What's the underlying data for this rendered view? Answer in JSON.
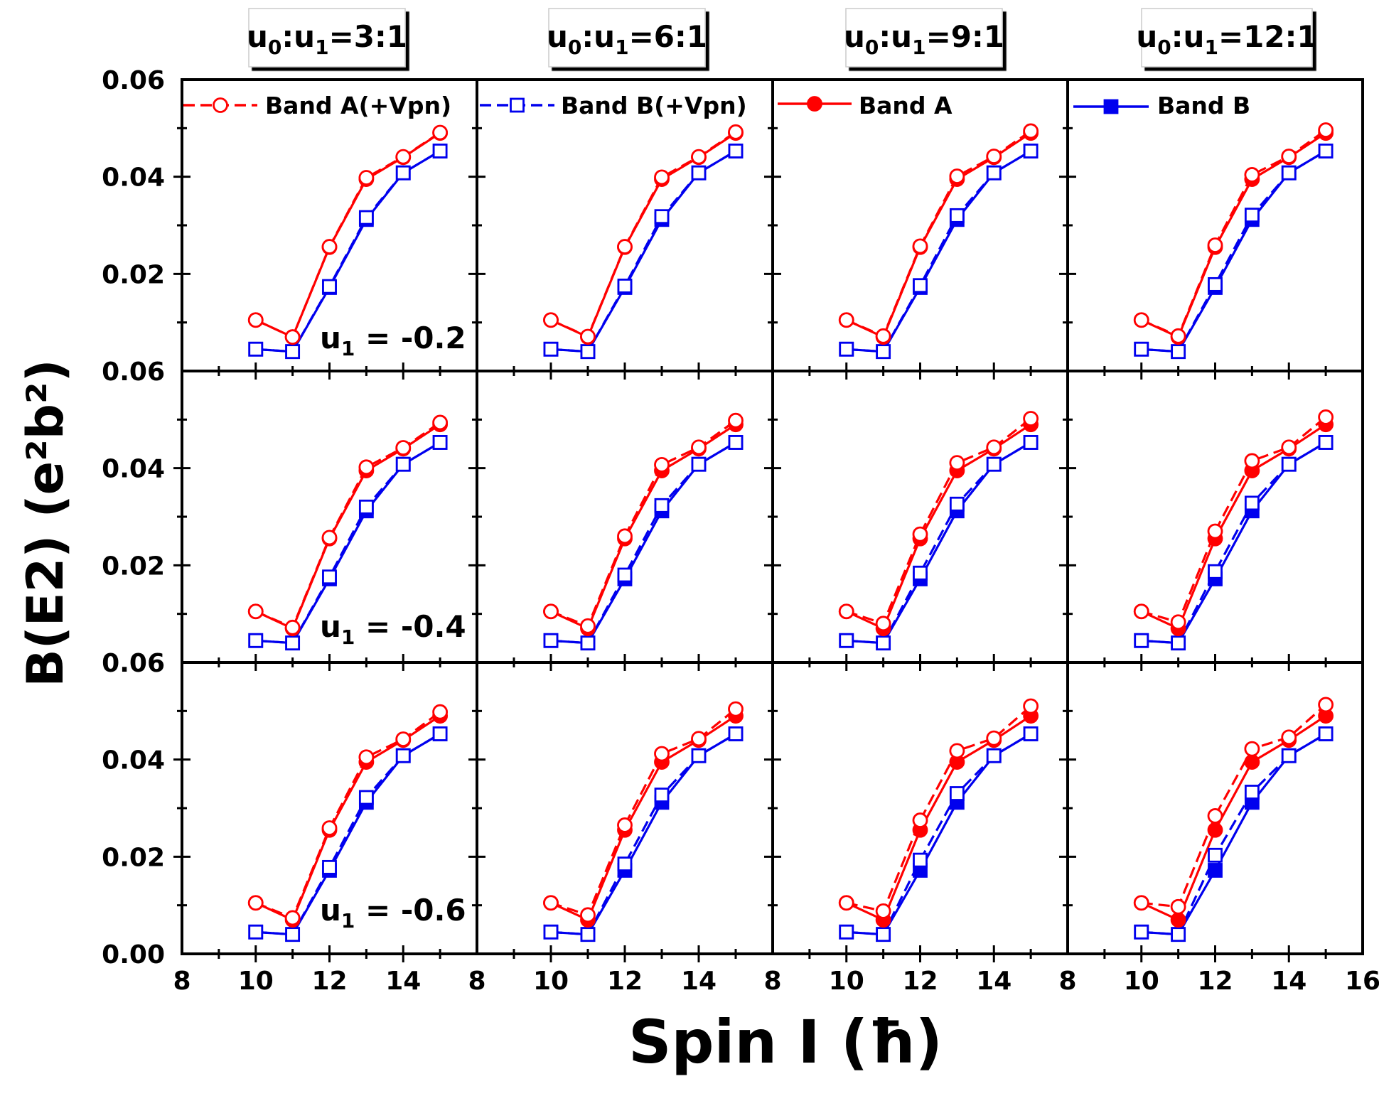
{
  "chart_data": {
    "type": "line",
    "grid": false,
    "ylabel": "B(E2) (e²b²)",
    "xlabel": "Spin I (ħ)",
    "xlim": [
      8,
      16
    ],
    "ylim": [
      0,
      0.06
    ],
    "xticks": [
      "8",
      "10",
      "12",
      "14"
    ],
    "xticks_last": [
      "8",
      "10",
      "12",
      "14",
      "16"
    ],
    "yticks": [
      "0.06",
      "0.04",
      "0.02"
    ],
    "yticks_bottom": [
      "0.06",
      "0.04",
      "0.02",
      "0.00"
    ],
    "column_titles": [
      {
        "u0": "u",
        "sub0": "0",
        "mid": ":u",
        "sub1": "1",
        "ratio": "=3:1"
      },
      {
        "u0": "u",
        "sub0": "0",
        "mid": ":u",
        "sub1": "1",
        "ratio": "=6:1"
      },
      {
        "u0": "u",
        "sub0": "0",
        "mid": ":u",
        "sub1": "1",
        "ratio": "=9:1"
      },
      {
        "u0": "u",
        "sub0": "0",
        "mid": ":u",
        "sub1": "1",
        "ratio": "=12:1"
      }
    ],
    "row_labels": [
      {
        "u": "u",
        "sub": "1",
        "value": " = -0.2"
      },
      {
        "u": "u",
        "sub": "1",
        "value": " = -0.4"
      },
      {
        "u": "u",
        "sub": "1",
        "value": " = -0.6"
      }
    ],
    "legend": [
      {
        "name": "Band A(+Vpn)",
        "color": "#ff0000",
        "dash": true,
        "marker": "circle-open",
        "panel_col": 0
      },
      {
        "name": "Band B(+Vpn)",
        "color": "#0000ee",
        "dash": true,
        "marker": "square-open",
        "panel_col": 1
      },
      {
        "name": "Band A",
        "color": "#ff0000",
        "dash": false,
        "marker": "circle-filled",
        "panel_col": 2
      },
      {
        "name": "Band B",
        "color": "#0000ee",
        "dash": false,
        "marker": "square-filled",
        "panel_col": 3
      }
    ],
    "x": [
      10,
      11,
      12,
      13,
      14,
      15
    ],
    "bandA": [
      0.0105,
      0.007,
      0.0255,
      0.0395,
      0.044,
      0.049
    ],
    "bandB": [
      0.0045,
      0.004,
      0.0172,
      0.0312,
      0.0408,
      0.0453
    ],
    "panels": [
      [
        {
          "A_vpn": [
            0.0105,
            0.007,
            0.0256,
            0.0398,
            0.0441,
            0.0491
          ],
          "B_vpn": [
            0.0045,
            0.004,
            0.0174,
            0.0316,
            0.0408,
            0.0453
          ]
        },
        {
          "A_vpn": [
            0.0105,
            0.0071,
            0.0256,
            0.0399,
            0.0441,
            0.0492
          ],
          "B_vpn": [
            0.0045,
            0.004,
            0.0175,
            0.0318,
            0.0408,
            0.0453
          ]
        },
        {
          "A_vpn": [
            0.0105,
            0.0072,
            0.0257,
            0.0401,
            0.0442,
            0.0494
          ],
          "B_vpn": [
            0.0045,
            0.004,
            0.0176,
            0.032,
            0.0408,
            0.0453
          ]
        },
        {
          "A_vpn": [
            0.0105,
            0.0072,
            0.0259,
            0.0404,
            0.0442,
            0.0496
          ],
          "B_vpn": [
            0.0045,
            0.004,
            0.0178,
            0.0321,
            0.0408,
            0.0453
          ]
        }
      ],
      [
        {
          "A_vpn": [
            0.0105,
            0.0072,
            0.0257,
            0.0402,
            0.0442,
            0.0494
          ],
          "B_vpn": [
            0.0045,
            0.004,
            0.0176,
            0.032,
            0.0408,
            0.0453
          ]
        },
        {
          "A_vpn": [
            0.0105,
            0.0075,
            0.026,
            0.0407,
            0.0443,
            0.0498
          ],
          "B_vpn": [
            0.0045,
            0.004,
            0.018,
            0.0323,
            0.0408,
            0.0453
          ]
        },
        {
          "A_vpn": [
            0.0105,
            0.008,
            0.0264,
            0.0411,
            0.0443,
            0.0502
          ],
          "B_vpn": [
            0.0045,
            0.004,
            0.0184,
            0.0326,
            0.0408,
            0.0453
          ]
        },
        {
          "A_vpn": [
            0.0105,
            0.0083,
            0.027,
            0.0415,
            0.0443,
            0.0505
          ],
          "B_vpn": [
            0.0045,
            0.004,
            0.0187,
            0.0328,
            0.0408,
            0.0453
          ]
        }
      ],
      [
        {
          "A_vpn": [
            0.0105,
            0.0074,
            0.0259,
            0.0405,
            0.0442,
            0.0498
          ],
          "B_vpn": [
            0.0045,
            0.004,
            0.0178,
            0.0322,
            0.0408,
            0.0453
          ]
        },
        {
          "A_vpn": [
            0.0105,
            0.008,
            0.0265,
            0.0412,
            0.0443,
            0.0504
          ],
          "B_vpn": [
            0.0045,
            0.004,
            0.0185,
            0.0327,
            0.0408,
            0.0453
          ]
        },
        {
          "A_vpn": [
            0.0105,
            0.0088,
            0.0275,
            0.0418,
            0.0444,
            0.051
          ],
          "B_vpn": [
            0.0045,
            0.004,
            0.0193,
            0.033,
            0.0408,
            0.0453
          ]
        },
        {
          "A_vpn": [
            0.0105,
            0.0097,
            0.0284,
            0.0422,
            0.0446,
            0.0513
          ],
          "B_vpn": [
            0.0045,
            0.004,
            0.0203,
            0.0333,
            0.0408,
            0.0453
          ]
        }
      ]
    ]
  }
}
